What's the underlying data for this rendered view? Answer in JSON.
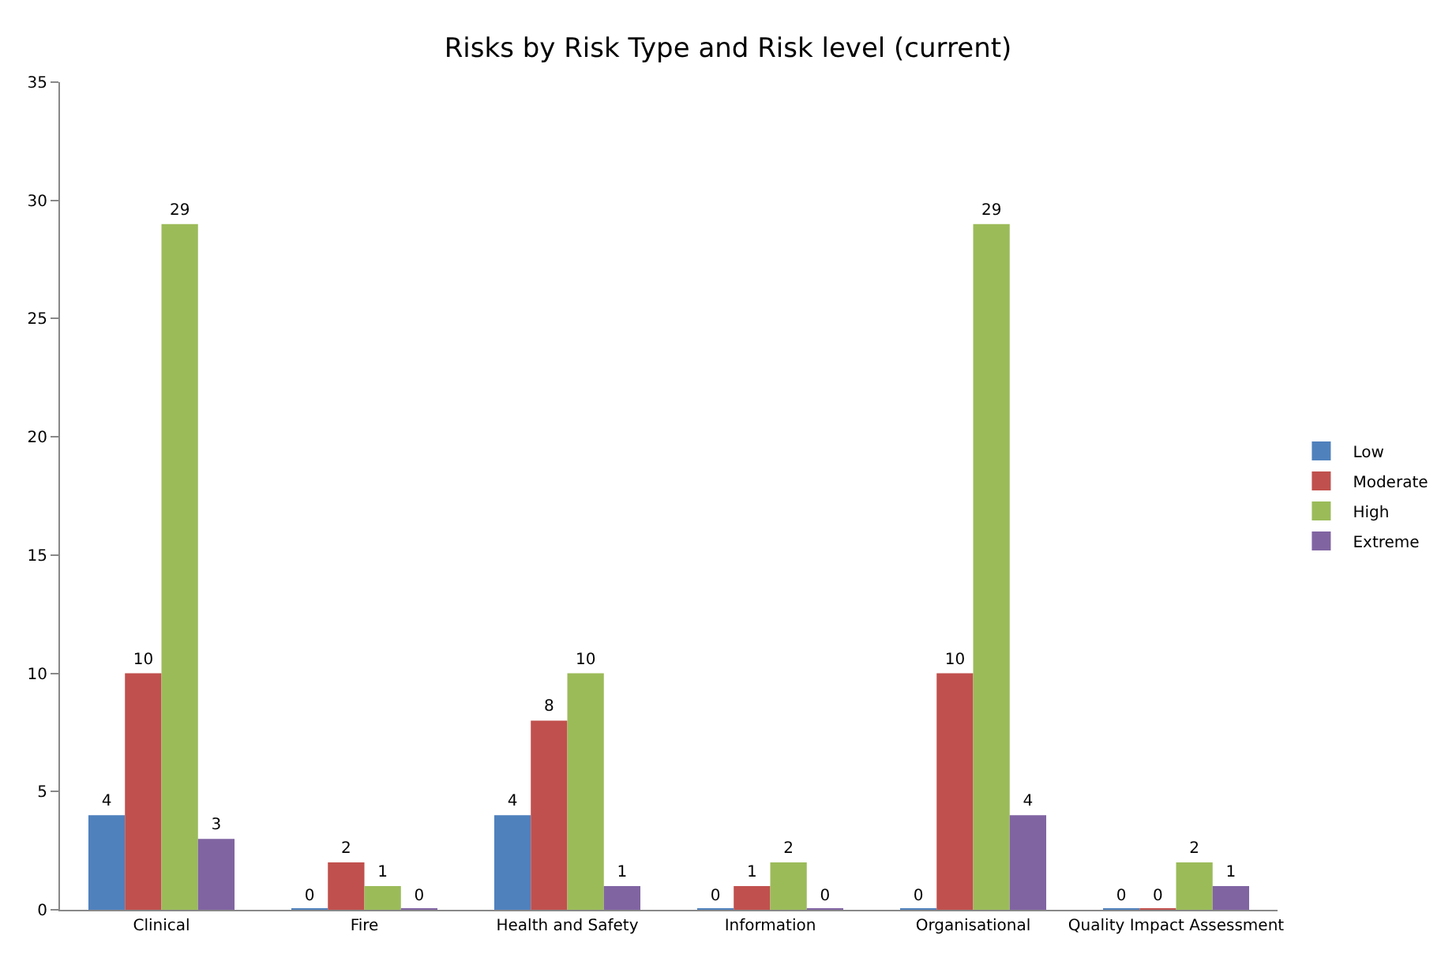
{
  "chart_data": {
    "type": "bar",
    "title": "Risks by Risk Type and Risk level (current)",
    "categories": [
      "Clinical",
      "Fire",
      "Health and Safety",
      "Information",
      "Organisational",
      "Quality Impact Assessment"
    ],
    "series": [
      {
        "name": "Low",
        "color": "#4f81bd",
        "values": [
          4,
          0,
          4,
          0,
          0,
          0
        ]
      },
      {
        "name": "Moderate",
        "color": "#c0504d",
        "values": [
          10,
          2,
          8,
          1,
          10,
          0
        ]
      },
      {
        "name": "High",
        "color": "#9bbb59",
        "values": [
          29,
          1,
          10,
          2,
          29,
          2
        ]
      },
      {
        "name": "Extreme",
        "color": "#8064a2",
        "values": [
          3,
          0,
          1,
          0,
          4,
          1
        ]
      }
    ],
    "ylim": [
      0,
      35
    ],
    "yticks": [
      0,
      5,
      10,
      15,
      20,
      25,
      30,
      35
    ],
    "grid": false,
    "legend": "right",
    "data_labels": true
  }
}
